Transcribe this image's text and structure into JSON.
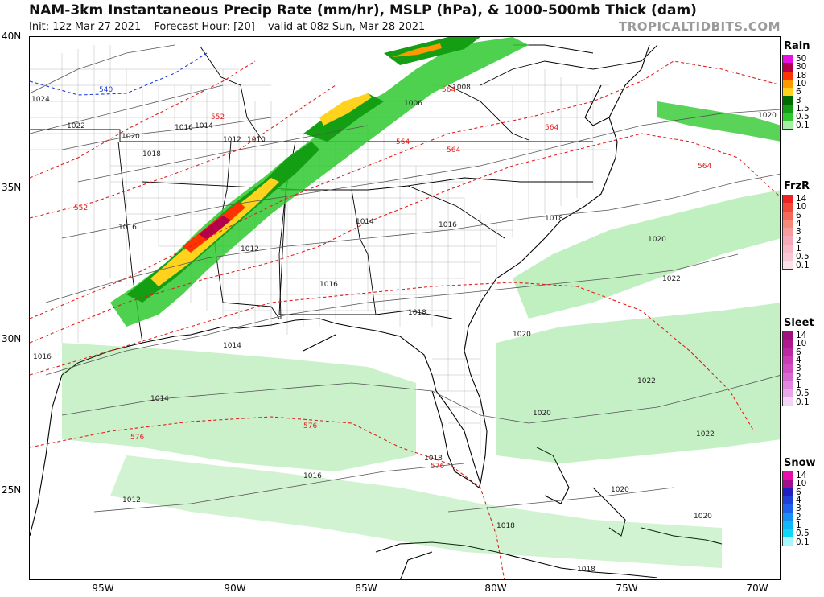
{
  "header": {
    "title": "NAM-3km Instantaneous Precip Rate (mm/hr), MSLP (hPa), & 1000-500mb Thick (dam)",
    "init": "Init: 12z Mar 27 2021",
    "forecast_hour": "Forecast Hour: [20]",
    "valid": "valid at 08z Sun, Mar 28 2021",
    "brand": "TROPICALTIDBITS.COM"
  },
  "map": {
    "lat_labels": [
      "40N",
      "35N",
      "30N",
      "25N"
    ],
    "lon_labels": [
      "95W",
      "90W",
      "85W",
      "80W",
      "75W",
      "70W"
    ],
    "isobar_labels": [
      "1024",
      "1022",
      "1020",
      "1018",
      "1016",
      "1014",
      "1012",
      "1010",
      "1008",
      "1006"
    ],
    "thickness_labels": [
      "540",
      "552",
      "564",
      "576"
    ],
    "colors": {
      "isobar": "#555555",
      "thickness_cold": "#1f3fd6",
      "thickness_warm": "#e02020",
      "coast": "#000000",
      "state_line": "#000000",
      "county_line": "#9a9a9a"
    }
  },
  "legends": [
    {
      "title": "Rain",
      "ticks": [
        "50",
        "30",
        "18",
        "10",
        "6",
        "3",
        "1.5",
        "0.5",
        "0.1"
      ],
      "colors": [
        "#e60fe6",
        "#b4004b",
        "#ff3300",
        "#ff9900",
        "#ffd21e",
        "#006b00",
        "#139e13",
        "#2fc92f",
        "#a6eea6"
      ]
    },
    {
      "title": "FrzR",
      "ticks": [
        "14",
        "10",
        "6",
        "4",
        "3",
        "2",
        "1",
        "0.5",
        "0.1"
      ],
      "colors": [
        "#ee2222",
        "#f24a3a",
        "#f46a5a",
        "#f68a7a",
        "#f59c9c",
        "#f5a8b8",
        "#f7b8c8",
        "#f9c8d6",
        "#fde0e8"
      ]
    },
    {
      "title": "Sleet",
      "ticks": [
        "14",
        "10",
        "6",
        "4",
        "3",
        "2",
        "1",
        "0.5",
        "0.1"
      ],
      "colors": [
        "#a01080",
        "#b01890",
        "#bc28a4",
        "#c83cb4",
        "#d050c4",
        "#d868d2",
        "#e088de",
        "#e8a8e8",
        "#f4d4f4"
      ]
    },
    {
      "title": "Snow",
      "ticks": [
        "14",
        "10",
        "6",
        "4",
        "3",
        "2",
        "1",
        "0.5",
        "0.1"
      ],
      "colors": [
        "#e60fa8",
        "#a0108c",
        "#2020c0",
        "#2040d8",
        "#2060ee",
        "#1890f0",
        "#10b8f8",
        "#10d6f8",
        "#a8f4ff"
      ]
    }
  ]
}
